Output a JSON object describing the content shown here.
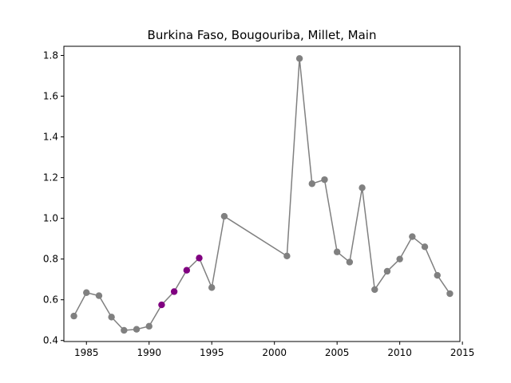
{
  "chart_data": {
    "type": "line",
    "title": "Burkina Faso, Bougouriba, Millet, Main",
    "xlabel": "",
    "ylabel": "",
    "xlim": [
      1983.2,
      2014.8
    ],
    "ylim": [
      0.395,
      1.845
    ],
    "x_ticks": [
      1985,
      1990,
      1995,
      2000,
      2005,
      2010,
      2015
    ],
    "y_ticks": [
      0.4,
      0.6,
      0.8,
      1.0,
      1.2,
      1.4,
      1.6,
      1.8
    ],
    "y_tick_labels": [
      "0.4",
      "0.6",
      "0.8",
      "1.0",
      "1.2",
      "1.4",
      "1.6",
      "1.8"
    ],
    "grid": false,
    "line_color": "#808080",
    "highlight_color": "#800080",
    "series": [
      {
        "x": [
          1984,
          1985,
          1986,
          1987,
          1988,
          1989,
          1990,
          1991,
          1992,
          1993,
          1994,
          1995,
          1996,
          2001,
          2002,
          2003,
          2004,
          2005,
          2006,
          2007,
          2008,
          2009,
          2010,
          2011,
          2012,
          2013,
          2014
        ],
        "y": [
          0.52,
          0.635,
          0.62,
          0.515,
          0.45,
          0.455,
          0.47,
          0.575,
          0.64,
          0.745,
          0.805,
          0.66,
          1.01,
          0.815,
          1.785,
          1.17,
          1.19,
          0.835,
          0.785,
          1.15,
          0.65,
          0.74,
          0.8,
          0.91,
          0.86,
          0.72,
          0.63
        ],
        "highlighted_x": [
          1991,
          1992,
          1993,
          1994
        ]
      }
    ]
  }
}
